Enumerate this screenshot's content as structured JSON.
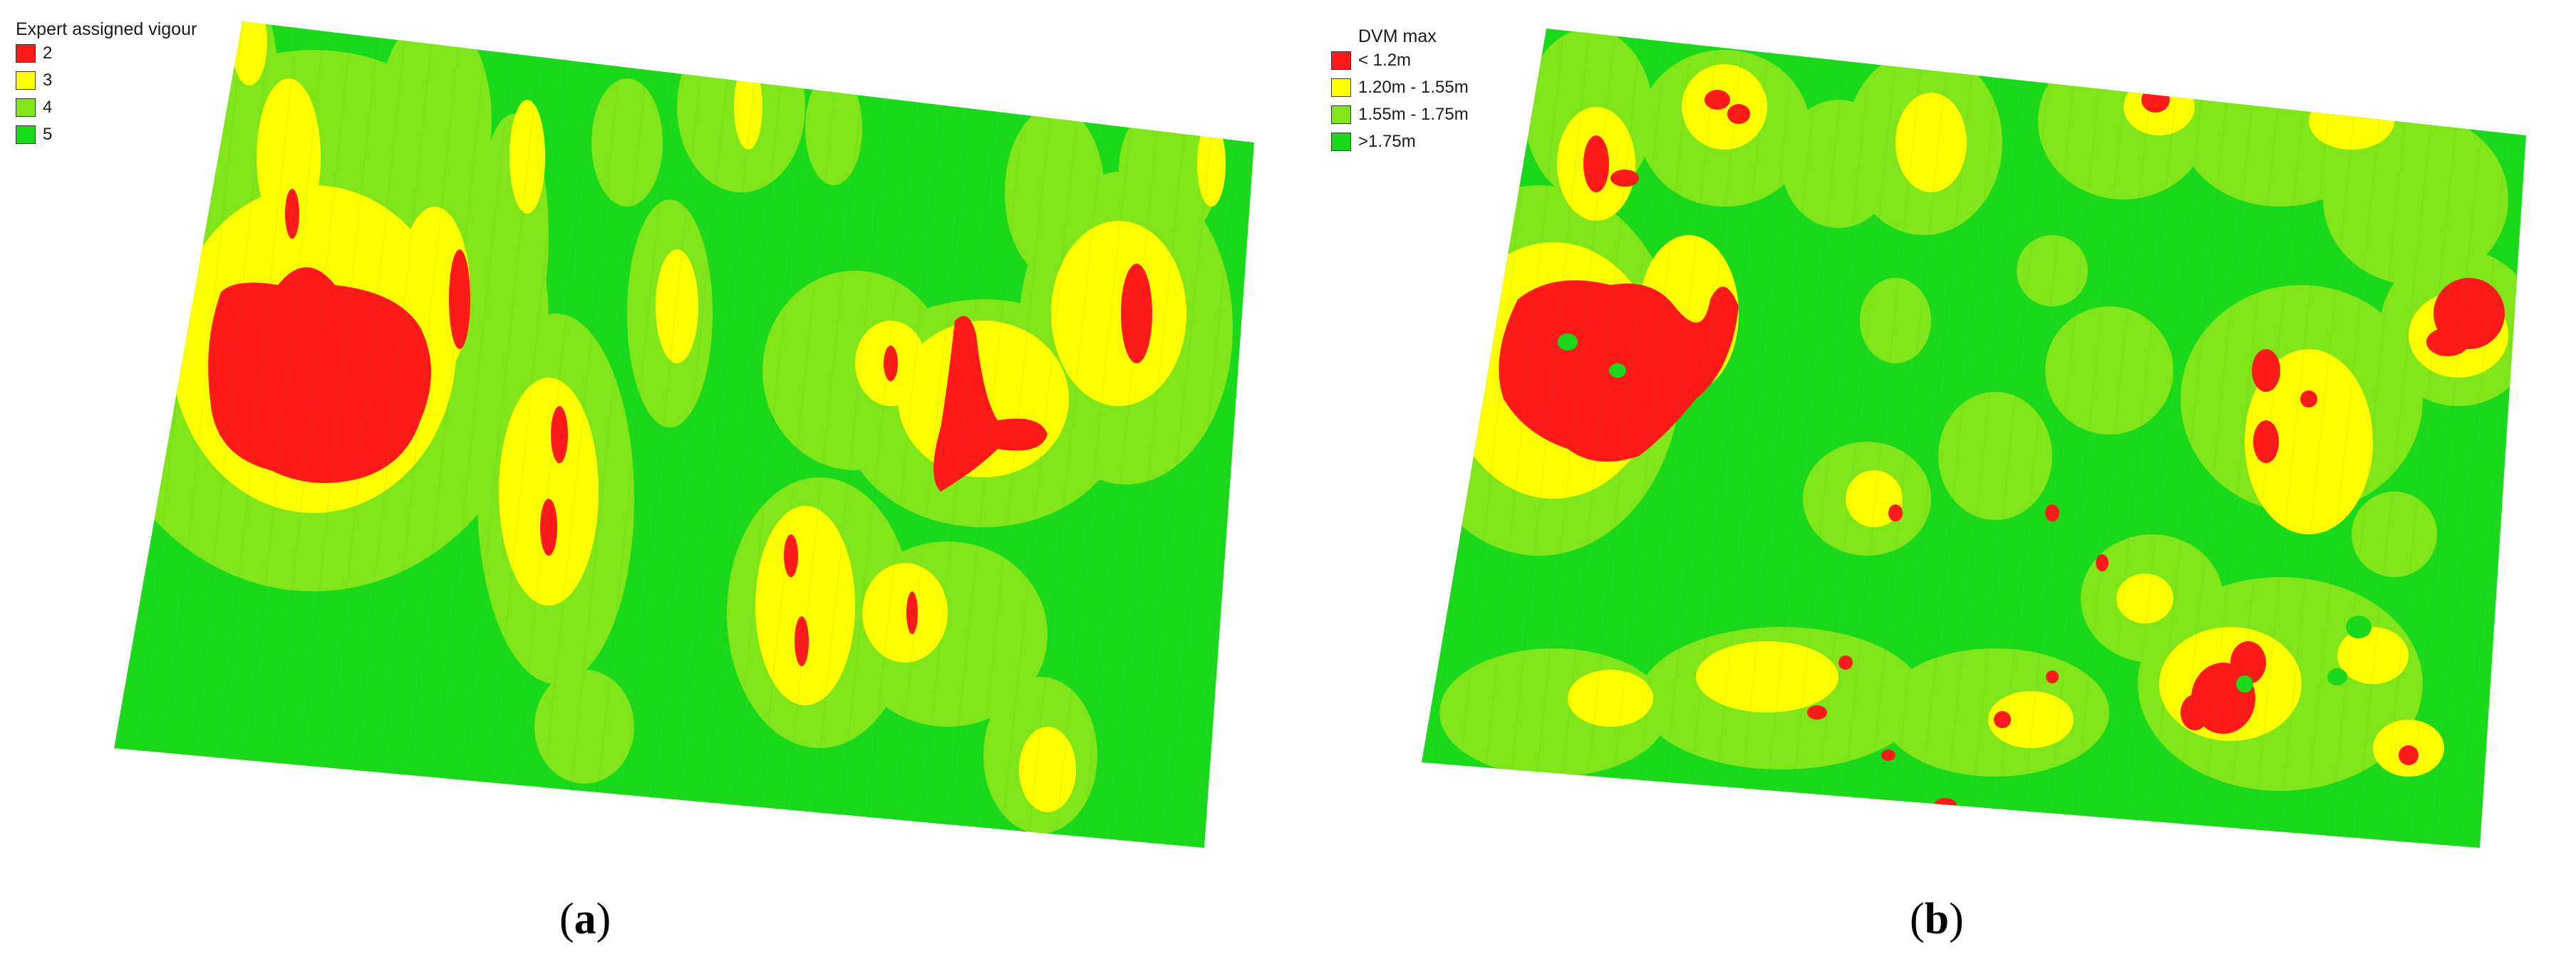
{
  "panels": [
    {
      "id": "a",
      "caption": {
        "open": "(",
        "letter": "a",
        "close": ")"
      },
      "legend": {
        "title": "Expert assigned vigour",
        "items": [
          {
            "label": "2",
            "color": "#ff1a1a"
          },
          {
            "label": "3",
            "color": "#ffff00"
          },
          {
            "label": "4",
            "color": "#80e61a"
          },
          {
            "label": "5",
            "color": "#1ad81a"
          }
        ]
      }
    },
    {
      "id": "b",
      "caption": {
        "open": "(",
        "letter": "b",
        "close": ")"
      },
      "legend": {
        "title": "DVM max",
        "items": [
          {
            "label": "< 1.2m",
            "color": "#ff1a1a"
          },
          {
            "label": "1.20m - 1.55m",
            "color": "#ffff00"
          },
          {
            "label": "1.55m - 1.75m",
            "color": "#80e61a"
          },
          {
            "label": ">1.75m",
            "color": "#1ad81a"
          }
        ]
      }
    }
  ]
}
